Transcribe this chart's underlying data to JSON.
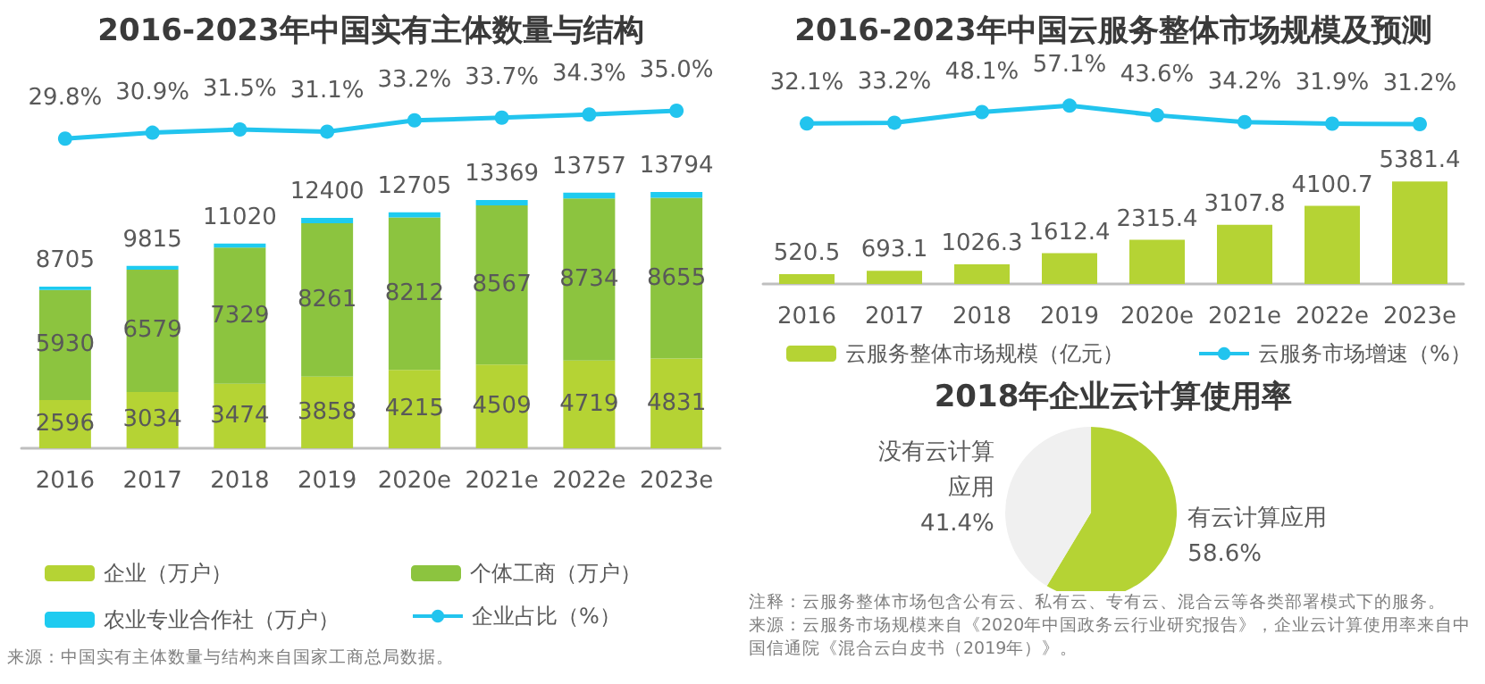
{
  "chart_data": [
    {
      "type": "bar",
      "categories": [
        "2016",
        "2017",
        "2018",
        "2019",
        "2020e",
        "2021e",
        "2022e",
        "2023e"
      ],
      "stacked": true,
      "legend": "bottom",
      "tick_labels": "x",
      "series": [
        {
          "name": "企业（万户）",
          "color": "#b5d334",
          "values": [
            2596,
            3034,
            3474,
            3858,
            4215,
            4509,
            4719,
            4831
          ],
          "value_labels": [
            "2596",
            "3034",
            "3474",
            "3858",
            "4215",
            "4509",
            "4719",
            "4831"
          ]
        },
        {
          "name": "个体工商（万户）",
          "color": "#8cc43f",
          "values": [
            5930,
            6579,
            7329,
            8261,
            8212,
            8567,
            8734,
            8655
          ],
          "value_labels": [
            "5930",
            "6579",
            "7329",
            "8261",
            "8212",
            "8567",
            "8734",
            "8655"
          ]
        },
        {
          "name": "农业专业合作社（万户）",
          "color": "#1ecbf0",
          "values": [
            179,
            202,
            217,
            281,
            278,
            293,
            304,
            308
          ]
        }
      ],
      "totals": [
        "8705",
        "9815",
        "11020",
        "12400",
        "12705",
        "13369",
        "13757",
        "13794"
      ],
      "annotations": [
        "来源：中国实有主体数量与结构来自国家工商总局数据。"
      ]
    },
    {
      "type": "line",
      "title": "2016-2023年中国实有主体数量与结构",
      "categories": [
        "2016",
        "2017",
        "2018",
        "2019",
        "2020e",
        "2021e",
        "2022e",
        "2023e"
      ],
      "legend": "bottom",
      "tick_labels": false,
      "marker": "circle",
      "series": [
        {
          "name": "企业占比（%）",
          "color": "#22c4ee",
          "values": [
            29.8,
            30.9,
            31.5,
            31.1,
            33.2,
            33.7,
            34.3,
            35.0
          ],
          "value_labels": [
            "29.8%",
            "30.9%",
            "31.5%",
            "31.1%",
            "33.2%",
            "33.7%",
            "34.3%",
            "35.0%"
          ]
        }
      ]
    },
    {
      "type": "bar",
      "categories": [
        "2016",
        "2017",
        "2018",
        "2019",
        "2020e",
        "2021e",
        "2022e",
        "2023e"
      ],
      "legend": "bottom",
      "tick_labels": "x",
      "series": [
        {
          "name": "云服务整体市场规模（亿元）",
          "color": "#b5d334",
          "values": [
            520.5,
            693.1,
            1026.3,
            1612.4,
            2315.4,
            3107.8,
            4100.7,
            5381.4
          ],
          "value_labels": [
            "520.5",
            "693.1",
            "1026.3",
            "1612.4",
            "2315.4",
            "3107.8",
            "4100.7",
            "5381.4"
          ]
        }
      ]
    },
    {
      "type": "line",
      "title": "2016-2023年中国云服务整体市场规模及预测",
      "categories": [
        "2016",
        "2017",
        "2018",
        "2019",
        "2020e",
        "2021e",
        "2022e",
        "2023e"
      ],
      "legend": "bottom",
      "tick_labels": false,
      "marker": "circle",
      "series": [
        {
          "name": "云服务市场增速（%）",
          "color": "#22c4ee",
          "values": [
            32.1,
            33.2,
            48.1,
            57.1,
            43.6,
            34.2,
            31.9,
            31.2
          ],
          "value_labels": [
            "32.1%",
            "33.2%",
            "48.1%",
            "57.1%",
            "43.6%",
            "34.2%",
            "31.9%",
            "31.2%"
          ]
        }
      ]
    },
    {
      "type": "pie",
      "title": "2018年企业云计算使用率",
      "categories": [
        "有云计算应用",
        "没有云计算应用"
      ],
      "values": [
        58.6,
        41.4
      ],
      "colors": [
        "#b5d334",
        "#f0f0f0"
      ],
      "value_labels": [
        "58.6%",
        "41.4%"
      ],
      "annotations": [
        "注释：云服务整体市场包含公有云、私有云、专有云、混合云等各类部署模式下的服务。",
        "来源：云服务市场规模来自《2020年中国政务云行业研究报告》，企业云计算使用率来自中国信通院《混合云白皮书（2019年）》。"
      ]
    }
  ]
}
